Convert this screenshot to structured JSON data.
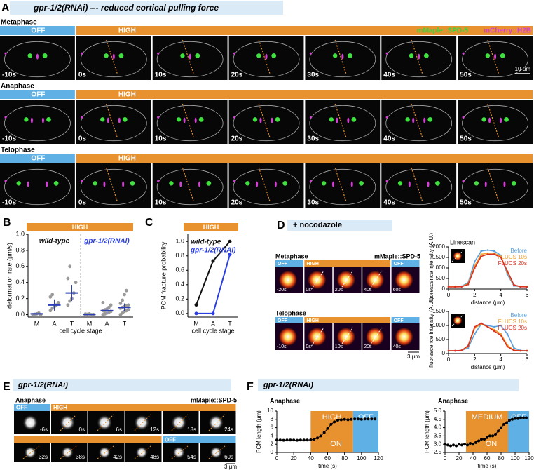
{
  "panel_a": {
    "letter": "A",
    "title": "gpr-1/2(RNAi) --- reduced cortical pulling force",
    "legend": [
      {
        "name": "mMaple::SPD-5",
        "color": "#3fd23f"
      },
      {
        "name": "mCherry::H2B",
        "color": "#d63fd6"
      }
    ],
    "scale_bar": "10 μm",
    "rows": [
      {
        "stage": "Metaphase",
        "segments": [
          "OFF",
          "HIGH"
        ],
        "times": [
          "-10s",
          "0s",
          "10s",
          "20s",
          "30s",
          "40s",
          "50s"
        ]
      },
      {
        "stage": "Anaphase",
        "segments": [
          "OFF",
          "HIGH"
        ],
        "times": [
          "-10s",
          "0s",
          "10s",
          "20s",
          "30s",
          "40s",
          "50s"
        ]
      },
      {
        "stage": "Telophase",
        "segments": [
          "OFF",
          "HIGH"
        ],
        "times": [
          "-10s",
          "0s",
          "10s",
          "20s",
          "30s",
          "40s",
          "50s"
        ]
      }
    ]
  },
  "panel_b": {
    "letter": "B",
    "type": "scatter",
    "header": "HIGH",
    "ylabel": "deformation rate (μm/s)",
    "xlabel": "cell cycle stage",
    "ylim": [
      -0.03,
      1.0
    ],
    "yticks": [
      {
        "value": 0,
        "label": "0.0"
      },
      0.2,
      0.4,
      0.6,
      0.8,
      {
        "value": 1,
        "label": "1.0"
      }
    ],
    "mean_color": "#2c3fb8",
    "point_color": "#999999",
    "groups": [
      {
        "name": "wild-type",
        "color": "#111111",
        "categories": [
          "M",
          "A",
          "T"
        ],
        "points": [
          [
            0,
            0.005,
            0.01,
            0.02,
            0
          ],
          [
            0.05,
            0.08,
            0.1,
            0.12,
            0.15,
            0.22,
            0.25
          ],
          [
            0.12,
            0.17,
            0.2,
            0.27,
            0.4,
            0.45,
            0.6
          ]
        ],
        "means": [
          0.01,
          0.12,
          0.27
        ],
        "errors": [
          0.008,
          0.07,
          0.1
        ]
      },
      {
        "name": "gpr-1/2(RNAi)",
        "color": "#2a3fe0",
        "categories": [
          "M",
          "A",
          "T"
        ],
        "points": [
          [
            0,
            0.005,
            0.01,
            0,
            0.002,
            0.008
          ],
          [
            0,
            0.01,
            0.02,
            0.03,
            0.04,
            0.05,
            0.06,
            0.07,
            0.09,
            0.12,
            0.15,
            0.02
          ],
          [
            0,
            0.02,
            0.04,
            0.05,
            0.06,
            0.08,
            0.09,
            0.1,
            0.11,
            0.12,
            0.14,
            0.18,
            0.25,
            0.3
          ]
        ],
        "means": [
          0.003,
          0.05,
          0.09
        ],
        "errors": [
          0.003,
          0.03,
          0.05
        ]
      }
    ]
  },
  "panel_c": {
    "letter": "C",
    "type": "line",
    "header": "HIGH",
    "ylabel": "PCM fracture probability",
    "xlabel": "cell cycle stage",
    "categories": [
      "M",
      "A",
      "T"
    ],
    "ylim": [
      -0.05,
      1.1
    ],
    "yticks": [
      {
        "value": 0,
        "label": "0.0"
      },
      0.2,
      0.4,
      0.6,
      0.8,
      {
        "value": 1,
        "label": "1.0"
      }
    ],
    "series": [
      {
        "name": "wild-type",
        "color": "#111111",
        "values": [
          0.12,
          0.73,
          1.0
        ]
      },
      {
        "name": "gpr-1/2(RNAi)",
        "color": "#2a3fe0",
        "values": [
          0,
          0,
          0.82
        ]
      }
    ]
  },
  "panel_d": {
    "letter": "D",
    "title": "+ nocodazole",
    "label": "mMaple::SPD-5",
    "scale_bar": "3 μm",
    "rows": [
      {
        "stage": "Metaphase",
        "segments": [
          "OFF",
          "HIGH",
          "OFF"
        ],
        "times": [
          "-20s",
          "0s",
          "20s",
          "40s",
          "60s"
        ]
      },
      {
        "stage": "Telophase",
        "segments": [
          "OFF",
          "HIGH",
          "OFF"
        ],
        "times": [
          "-10s",
          "0s",
          "10s",
          "20s",
          "40s"
        ]
      }
    ],
    "linescans": [
      {
        "type": "line",
        "title": "Linescan",
        "xlabel": "distance (μm)",
        "ylabel": "fluorescence intensity (A.U.)",
        "x": [
          0,
          0.5,
          1,
          1.5,
          2,
          2.5,
          3,
          3.5,
          4,
          4.5,
          5,
          5.5,
          6
        ],
        "xlim": [
          0,
          6
        ],
        "xticks": [
          0,
          2,
          4,
          6
        ],
        "ylim": [
          0,
          2000
        ],
        "yticks": [
          0,
          500,
          1000,
          1500,
          2000
        ],
        "series": [
          {
            "name": "Before",
            "color": "#5aa0e0",
            "values": [
              120,
              120,
              130,
              300,
              1300,
              1800,
              1850,
              1800,
              1600,
              700,
              150,
              120,
              120
            ]
          },
          {
            "name": "FLUCS 10s",
            "color": "#f0a030",
            "values": [
              110,
              110,
              120,
              250,
              1100,
              1650,
              1700,
              1700,
              1550,
              800,
              180,
              110,
              110
            ]
          },
          {
            "name": "FLUCS 20s",
            "color": "#d83020",
            "values": [
              100,
              100,
              110,
              220,
              1000,
              1550,
              1650,
              1650,
              1500,
              850,
              200,
              110,
              100
            ]
          }
        ]
      },
      {
        "type": "line",
        "xlabel": "distance (μm)",
        "ylabel": "fluorescence intensity (A.U.)",
        "x": [
          0,
          0.5,
          1,
          1.5,
          2,
          2.5,
          3,
          3.5,
          4,
          4.5,
          5,
          5.5,
          6
        ],
        "xlim": [
          0,
          6
        ],
        "xticks": [
          0,
          2,
          4,
          6
        ],
        "ylim": [
          0,
          1500
        ],
        "yticks": [
          0,
          500,
          1000,
          1500
        ],
        "series": [
          {
            "name": "Before",
            "color": "#5aa0e0",
            "values": [
              100,
              100,
              110,
              200,
              700,
              1050,
              1000,
              950,
              1000,
              700,
              200,
              110,
              100
            ]
          },
          {
            "name": "FLUCS 10s",
            "color": "#f0a030",
            "values": [
              100,
              100,
              110,
              250,
              900,
              1050,
              950,
              850,
              700,
              300,
              120,
              100,
              100
            ]
          },
          {
            "name": "FLUCS 20s",
            "color": "#d83020",
            "values": [
              100,
              100,
              110,
              280,
              950,
              1080,
              950,
              800,
              650,
              250,
              110,
              100,
              100
            ]
          }
        ]
      }
    ]
  },
  "panel_e": {
    "letter": "E",
    "title": "gpr-1/2(RNAi)",
    "stage": "Anaphase",
    "label": "mMaple::SPD-5",
    "scale_bar": "3 μm",
    "rows": [
      {
        "segments": [
          "OFF",
          "HIGH"
        ],
        "times": [
          "-6s",
          "0s",
          "6s",
          "12s",
          "18s",
          "24s"
        ]
      },
      {
        "segments": [
          "OFF"
        ],
        "times": [
          "32s",
          "38s",
          "42s",
          "48s",
          "54s",
          "60s"
        ]
      }
    ]
  },
  "panel_f": {
    "letter": "F",
    "title": "gpr-1/2(RNAi)",
    "charts": [
      {
        "type": "line",
        "title": "Anaphase",
        "ylabel": "PCM length (μm)",
        "xlabel": "time (s)",
        "x": [
          0,
          4,
          8,
          12,
          16,
          20,
          24,
          28,
          32,
          36,
          40,
          44,
          48,
          52,
          56,
          60,
          64,
          68,
          72,
          76,
          80,
          84,
          88,
          92,
          96,
          100,
          104,
          108,
          112,
          116
        ],
        "values": [
          3.0,
          3.0,
          2.95,
          3.0,
          3.0,
          3.0,
          2.95,
          3.0,
          3.0,
          3.0,
          3.05,
          3.2,
          3.5,
          4.0,
          4.8,
          5.8,
          6.8,
          7.4,
          7.8,
          7.9,
          8.0,
          7.9,
          8.0,
          8.1,
          8.1,
          8.0,
          8.1,
          8.1,
          8.1,
          8.1
        ],
        "xlim": [
          0,
          120
        ],
        "xticks": [
          0,
          20,
          40,
          60,
          80,
          100,
          120
        ],
        "ylim": [
          0,
          10
        ],
        "yticks": [
          0,
          2,
          4,
          6,
          8,
          10
        ],
        "spans": [
          {
            "label": "HIGH",
            "sublabel": "ON",
            "x": [
              40,
              90
            ],
            "color": "#e8912f"
          },
          {
            "label": "OFF",
            "x": [
              90,
              120
            ],
            "color": "#5fb0e4"
          }
        ]
      },
      {
        "type": "line",
        "title": "Anaphase",
        "ylabel": "PCM length (μm)",
        "xlabel": "time (s)",
        "x": [
          0,
          4,
          8,
          12,
          16,
          20,
          24,
          28,
          32,
          36,
          40,
          44,
          48,
          52,
          56,
          60,
          64,
          68,
          72,
          76,
          80,
          84,
          88,
          92,
          96,
          100,
          104,
          108,
          112,
          116
        ],
        "values": [
          3.0,
          2.95,
          2.9,
          2.95,
          2.9,
          3.0,
          2.95,
          3.0,
          2.95,
          3.05,
          3.0,
          3.1,
          3.2,
          3.3,
          3.3,
          3.4,
          3.5,
          3.5,
          3.6,
          3.8,
          4.0,
          4.2,
          4.3,
          4.45,
          4.5,
          4.55,
          4.55,
          4.6,
          4.6,
          4.6
        ],
        "xlim": [
          0,
          120
        ],
        "xticks": [
          0,
          20,
          40,
          60,
          80,
          100,
          120
        ],
        "ylim": [
          2.5,
          5.0
        ],
        "yticks": [
          2.5,
          {
            "value": 3,
            "label": "3.0"
          },
          3.5,
          {
            "value": 4,
            "label": "4.0"
          },
          4.5,
          {
            "value": 5,
            "label": "5.0"
          }
        ],
        "spans": [
          {
            "label": "MEDIUM",
            "sublabel": "ON",
            "x": [
              30,
              90
            ],
            "color": "#e8912f"
          },
          {
            "label": "OFF",
            "x": [
              90,
              120
            ],
            "color": "#5fb0e4"
          }
        ]
      }
    ]
  }
}
